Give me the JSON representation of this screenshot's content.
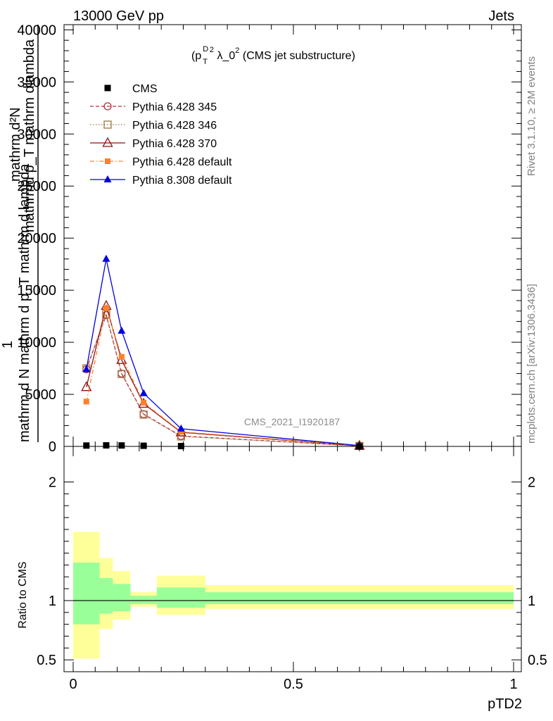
{
  "header": {
    "left": "13000 GeV pp",
    "right": "Jets"
  },
  "side": {
    "rivet": "Rivet 3.1.10, ≥ 2M events",
    "mcplots": "mcplots.cern.ch [arXiv:1306.3436]"
  },
  "colors": {
    "cms": "#000000",
    "p345": "#b03040",
    "p346": "#a07840",
    "p370": "#901010",
    "p6def": "#ff7f2a",
    "p8def": "#0000e0",
    "band_outer": "#ffff99",
    "band_inner": "#99ff99"
  },
  "chart_data": [
    {
      "type": "line",
      "title_main": "(p",
      "title_sup": "D",
      "title_sub": "T",
      "title_sup2": "2",
      "title_rest": " λ_0",
      "title_sup3": "2",
      "title_tail": " (CMS jet substructure)",
      "ylabel": "1 / mathrm d N mathrm d p_T mathrm d lambda mathrm d^2N / mathrm d p_T mathrm d lambda",
      "ylabel_top": "mathrm d²N",
      "ylabel_mid1": "mathrmd p_T mathrm dlambda",
      "ylabel_one": "1",
      "ylabel_bottom": "mathrm d N mathrm d p_T mathrm d lambda",
      "watermark": "CMS_2021_I1920187",
      "xlim": [
        0,
        1
      ],
      "ylim": [
        0,
        40500
      ],
      "yticks": [
        0,
        5000,
        10000,
        15000,
        20000,
        25000,
        30000,
        35000,
        40000
      ],
      "yticklabels": [
        "0",
        "5000",
        "10000",
        "15000",
        "20000",
        "25000",
        "30000",
        "35000",
        "40000"
      ],
      "legend": [
        {
          "label": "CMS"
        },
        {
          "label": "Pythia 6.428 345"
        },
        {
          "label": "Pythia 6.428 346"
        },
        {
          "label": "Pythia 6.428 370"
        },
        {
          "label": "Pythia 6.428 default"
        },
        {
          "label": "Pythia 8.308 default"
        }
      ],
      "cms": {
        "x": [
          0.03,
          0.075,
          0.11,
          0.16,
          0.245,
          0.65
        ],
        "y": [
          80,
          100,
          90,
          60,
          30,
          5
        ]
      },
      "series": [
        {
          "name": "Pythia 6.428 345",
          "x": [
            0.03,
            0.075,
            0.11,
            0.16,
            0.245,
            0.65
          ],
          "y": [
            7400,
            12600,
            7000,
            3100,
            1000,
            50
          ]
        },
        {
          "name": "Pythia 6.428 346",
          "x": [
            0.03,
            0.075,
            0.11,
            0.16,
            0.245,
            0.65
          ],
          "y": [
            7500,
            12700,
            6950,
            3050,
            950,
            45
          ]
        },
        {
          "name": "Pythia 6.428 370",
          "x": [
            0.03,
            0.075,
            0.11,
            0.16,
            0.245,
            0.65
          ],
          "y": [
            5700,
            13500,
            8300,
            4100,
            1350,
            60
          ]
        },
        {
          "name": "Pythia 6.428 default",
          "x": [
            0.03,
            0.075,
            0.11,
            0.16,
            0.245,
            0.65
          ],
          "y": [
            4300,
            13300,
            8600,
            4200,
            1400,
            70
          ]
        },
        {
          "name": "Pythia 8.308 default",
          "x": [
            0.03,
            0.075,
            0.11,
            0.16,
            0.245,
            0.65
          ],
          "y": [
            7400,
            18000,
            11100,
            5100,
            1700,
            80
          ]
        }
      ]
    },
    {
      "type": "area",
      "ylabel": "Ratio to CMS",
      "xlabel": "pTD2",
      "xlim": [
        0,
        1
      ],
      "ylim": [
        0.4,
        2.3
      ],
      "yticks": [
        0.5,
        1,
        2
      ],
      "yticklabels": [
        "0.5",
        "1",
        "2"
      ],
      "xticks": [
        0,
        0.5,
        1
      ],
      "xticklabels": [
        "0",
        "0.5",
        "1"
      ],
      "bins": [
        {
          "lo": 0.0,
          "hi": 0.06,
          "outer": [
            0.51,
            1.58
          ],
          "inner": [
            0.8,
            1.32
          ]
        },
        {
          "lo": 0.06,
          "hi": 0.09,
          "outer": [
            0.76,
            1.36
          ],
          "inner": [
            0.89,
            1.19
          ]
        },
        {
          "lo": 0.09,
          "hi": 0.13,
          "outer": [
            0.84,
            1.25
          ],
          "inner": [
            0.91,
            1.14
          ]
        },
        {
          "lo": 0.13,
          "hi": 0.19,
          "outer": [
            0.95,
            1.07
          ],
          "inner": [
            0.97,
            1.04
          ]
        },
        {
          "lo": 0.19,
          "hi": 0.3,
          "outer": [
            0.88,
            1.21
          ],
          "inner": [
            0.94,
            1.11
          ]
        },
        {
          "lo": 0.3,
          "hi": 1.0,
          "outer": [
            0.93,
            1.13
          ],
          "inner": [
            0.97,
            1.07
          ]
        }
      ]
    }
  ]
}
